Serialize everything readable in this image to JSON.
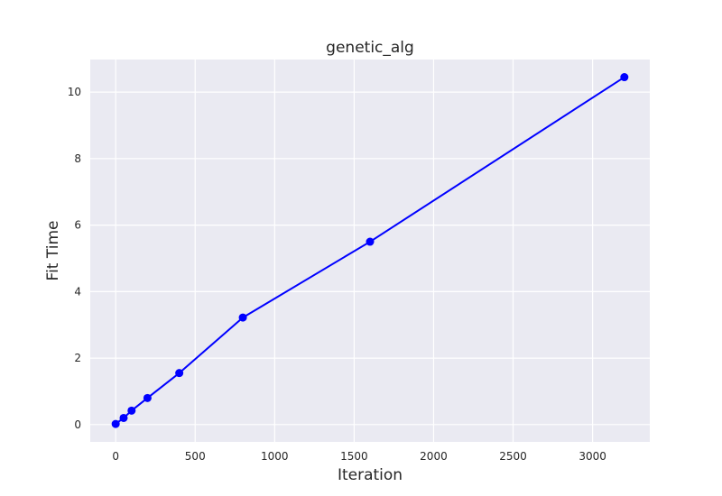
{
  "chart_data": {
    "type": "line",
    "title": "genetic_alg",
    "xlabel": "Iteration",
    "ylabel": "Fit Time",
    "xlim": [
      -160,
      3360
    ],
    "ylim": [
      -0.52,
      10.98
    ],
    "xticks": [
      0,
      500,
      1000,
      1500,
      2000,
      2500,
      3000
    ],
    "yticks": [
      0,
      2,
      4,
      6,
      8,
      10
    ],
    "grid": true,
    "legend": "none",
    "series": [
      {
        "color": "#0000ff",
        "marker": "circle",
        "x": [
          0,
          50,
          100,
          200,
          400,
          800,
          1600,
          3200
        ],
        "y": [
          0.02,
          0.2,
          0.42,
          0.8,
          1.55,
          3.22,
          5.5,
          10.45
        ]
      }
    ],
    "colors": {
      "background": "#eaeaf2",
      "grid": "#ffffff",
      "text": "#262626"
    }
  }
}
